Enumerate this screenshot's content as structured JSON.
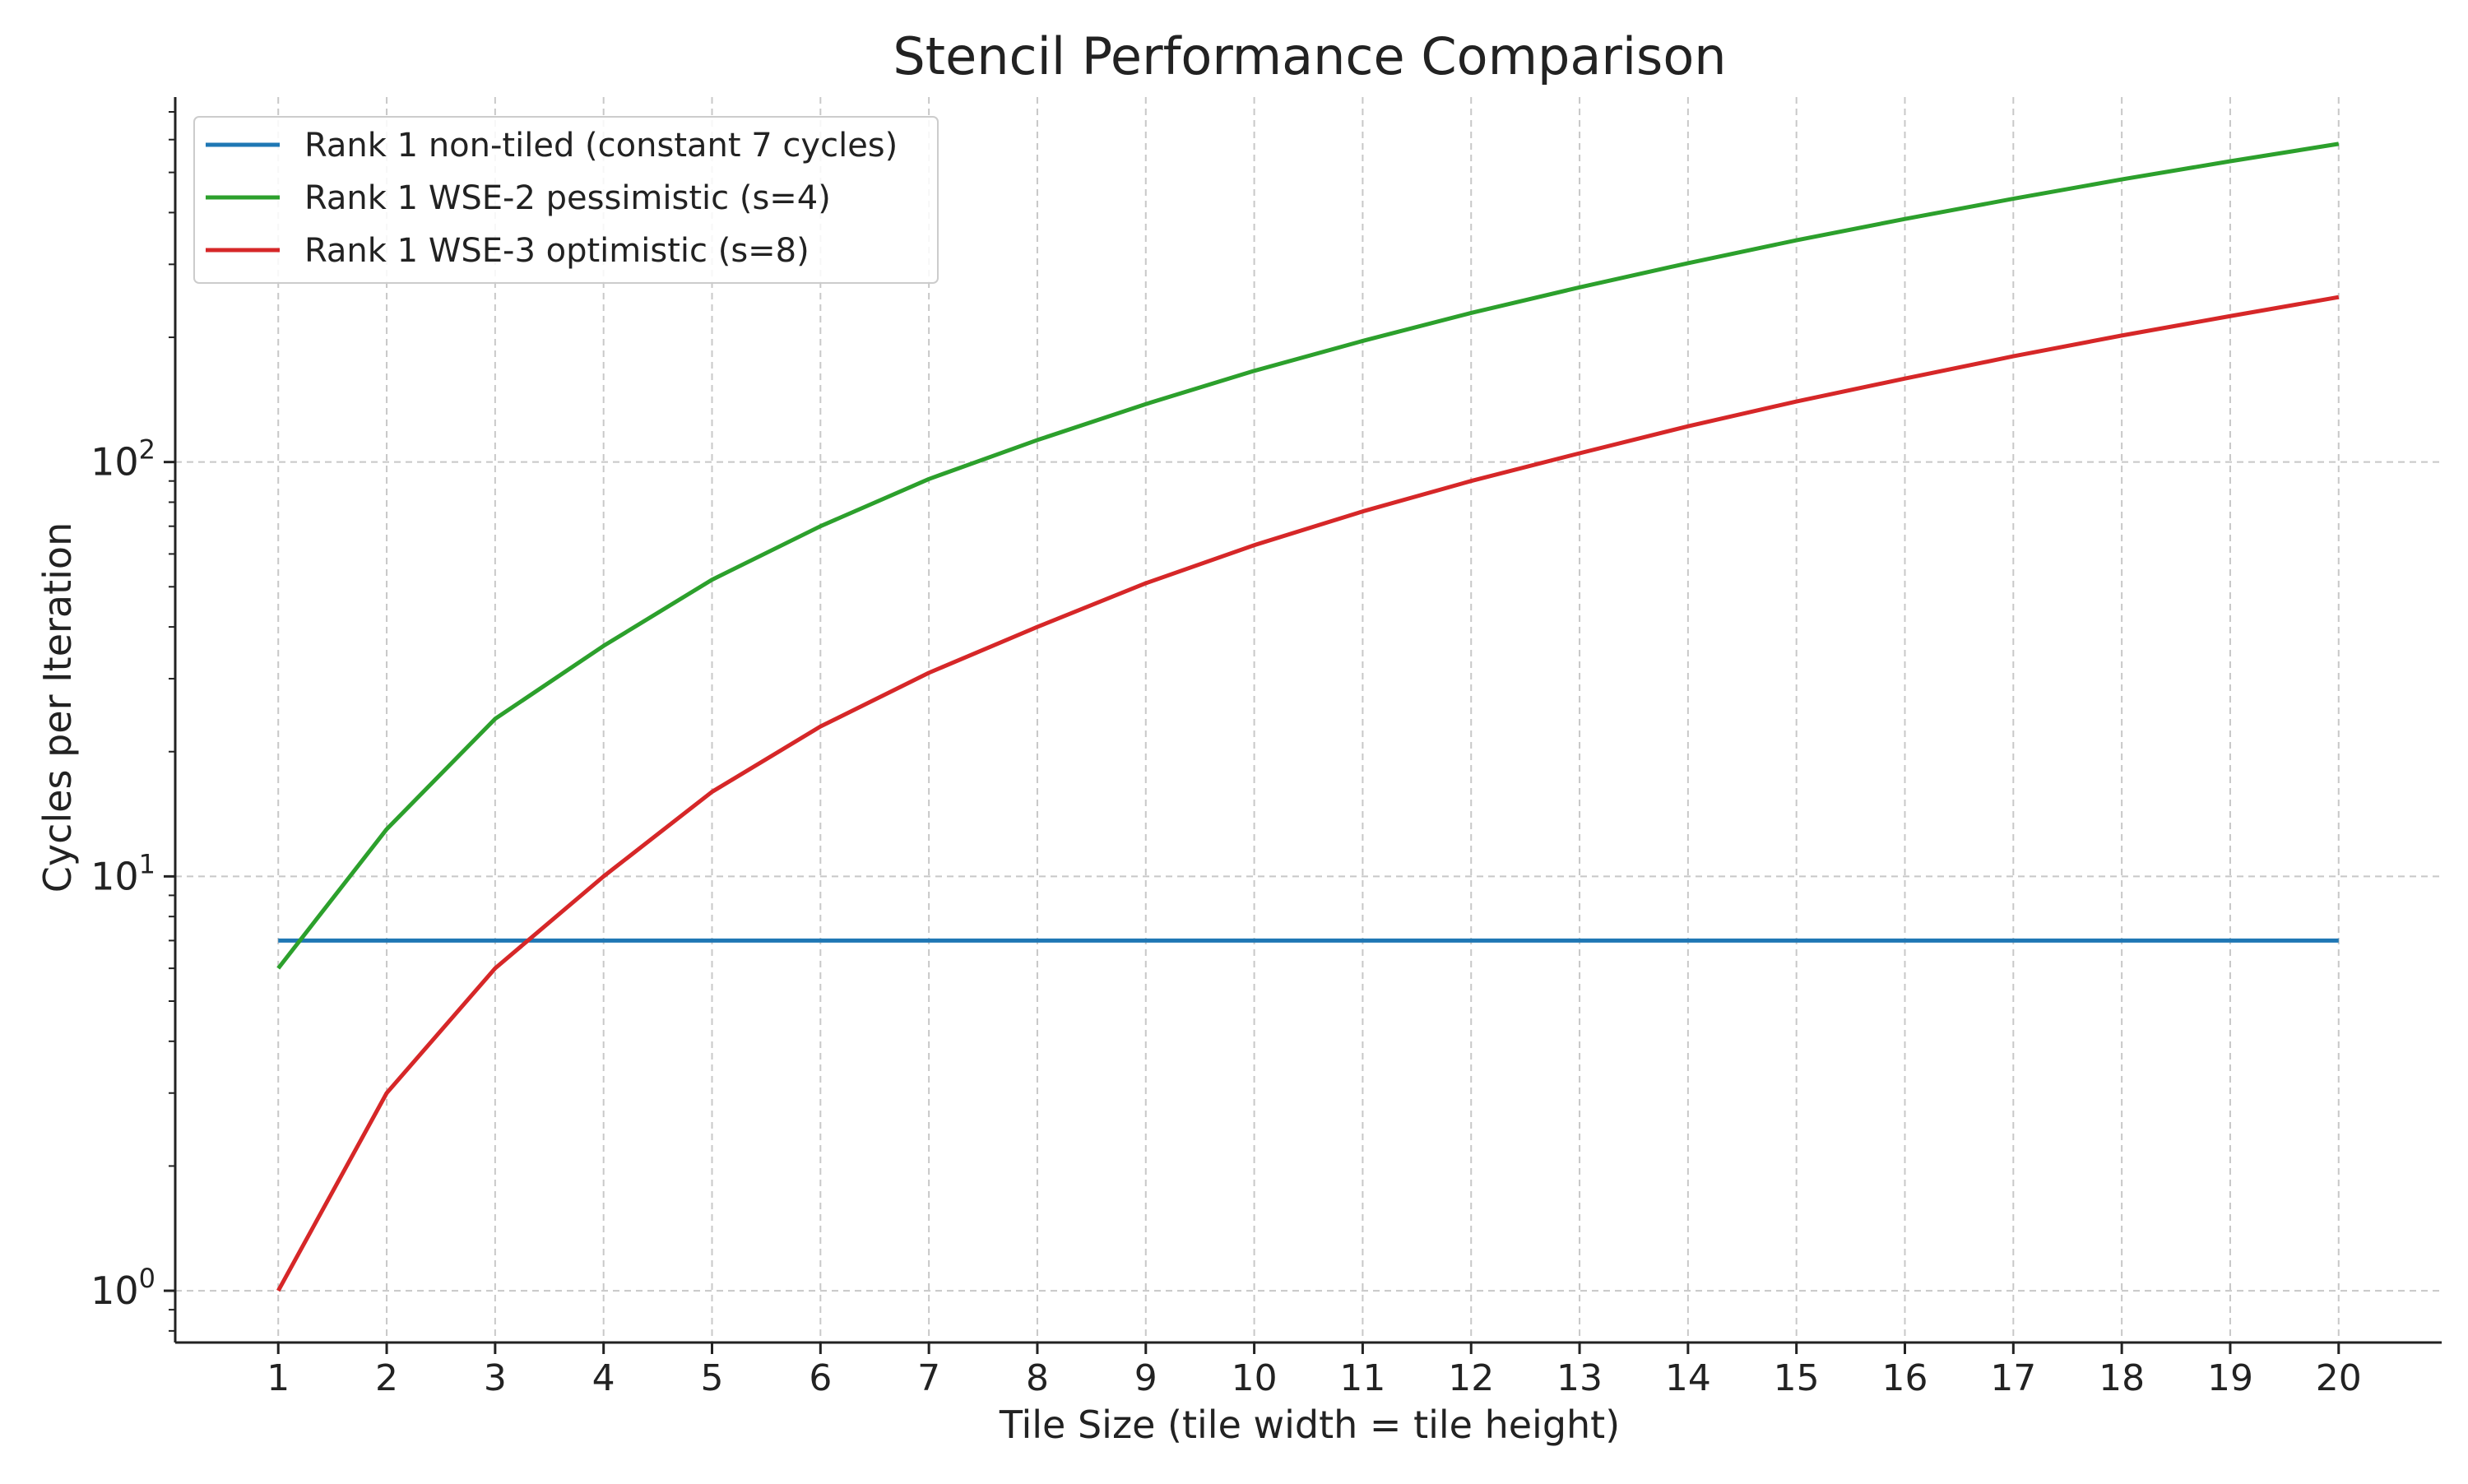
{
  "chart_data": {
    "type": "line",
    "title": "Stencil Performance Comparison",
    "xlabel": "Tile Size (tile width = tile height)",
    "ylabel": "Cycles per Iteration",
    "x": [
      1,
      2,
      3,
      4,
      5,
      6,
      7,
      8,
      9,
      10,
      11,
      12,
      13,
      14,
      15,
      16,
      17,
      18,
      19,
      20
    ],
    "yscale": "log",
    "ylim": [
      0.75,
      760
    ],
    "xlim": [
      0.05,
      20.95
    ],
    "grid": true,
    "legend_position": "top-left",
    "y_ticks": [
      {
        "value": 1,
        "base": "10",
        "exp": "0"
      },
      {
        "value": 10,
        "base": "10",
        "exp": "1"
      },
      {
        "value": 100,
        "base": "10",
        "exp": "2"
      }
    ],
    "series": [
      {
        "name": "Rank 1 non-tiled (constant 7 cycles)",
        "color": "#1f77b4",
        "values": [
          7,
          7,
          7,
          7,
          7,
          7,
          7,
          7,
          7,
          7,
          7,
          7,
          7,
          7,
          7,
          7,
          7,
          7,
          7,
          7
        ]
      },
      {
        "name": "Rank 1 WSE-2 pessimistic (s=4)",
        "color": "#2ca02c",
        "values": [
          6,
          13,
          24,
          36,
          52,
          70,
          91,
          113,
          138,
          166,
          196,
          229,
          264,
          302,
          343,
          386,
          432,
          481,
          532,
          586
        ]
      },
      {
        "name": "Rank 1 WSE-3 optimistic (s=8)",
        "color": "#d62728",
        "values": [
          1,
          3,
          6,
          10,
          16,
          23,
          31,
          40,
          51,
          63,
          76,
          90,
          105,
          122,
          140,
          159,
          180,
          202,
          225,
          250
        ]
      }
    ]
  }
}
